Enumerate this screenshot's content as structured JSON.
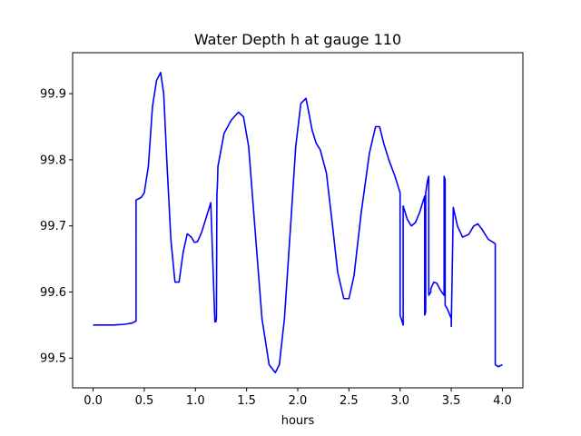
{
  "chart_data": {
    "type": "line",
    "title": "Water Depth h at gauge 110",
    "xlabel": "hours",
    "ylabel": "",
    "xlim": [
      -0.2,
      4.2
    ],
    "ylim": [
      99.455,
      99.962
    ],
    "xticks": [
      0.0,
      0.5,
      1.0,
      1.5,
      2.0,
      2.5,
      3.0,
      3.5,
      4.0
    ],
    "xtick_labels": [
      "0.0",
      "0.5",
      "1.0",
      "1.5",
      "2.0",
      "2.5",
      "3.0",
      "3.5",
      "4.0"
    ],
    "yticks": [
      99.5,
      99.6,
      99.7,
      99.8,
      99.9
    ],
    "ytick_labels": [
      "99.5",
      "99.6",
      "99.7",
      "99.8",
      "99.9"
    ],
    "grid": false,
    "legend": "none",
    "series": [
      {
        "color": "#0000ff",
        "x": [
          0.0,
          0.1,
          0.2,
          0.3,
          0.38,
          0.42,
          0.42,
          0.47,
          0.5,
          0.54,
          0.58,
          0.62,
          0.66,
          0.69,
          0.72,
          0.76,
          0.8,
          0.84,
          0.88,
          0.92,
          0.96,
          0.99,
          1.02,
          1.06,
          1.1,
          1.15,
          1.19,
          1.2,
          1.205,
          1.21,
          1.215,
          1.22,
          1.28,
          1.35,
          1.42,
          1.47,
          1.52,
          1.58,
          1.65,
          1.72,
          1.78,
          1.82,
          1.87,
          1.93,
          1.98,
          2.03,
          2.08,
          2.11,
          2.14,
          2.18,
          2.22,
          2.28,
          2.34,
          2.39,
          2.45,
          2.5,
          2.55,
          2.62,
          2.7,
          2.76,
          2.8,
          2.84,
          2.89,
          2.95,
          3.0,
          3.0,
          3.03,
          3.03,
          3.07,
          3.11,
          3.15,
          3.19,
          3.23,
          3.24,
          3.24,
          3.25,
          3.25,
          3.27,
          3.28,
          3.28,
          3.3,
          3.3,
          3.33,
          3.36,
          3.39,
          3.42,
          3.43,
          3.43,
          3.44,
          3.44,
          3.46,
          3.5,
          3.5,
          3.52,
          3.56,
          3.61,
          3.67,
          3.72,
          3.76,
          3.8,
          3.86,
          3.93,
          3.93,
          3.96,
          4.0
        ],
        "y": [
          99.55,
          99.55,
          99.55,
          99.551,
          99.553,
          99.556,
          99.739,
          99.743,
          99.75,
          99.79,
          99.88,
          99.92,
          99.932,
          99.9,
          99.8,
          99.68,
          99.615,
          99.615,
          99.66,
          99.688,
          99.683,
          99.675,
          99.676,
          99.69,
          99.71,
          99.735,
          99.555,
          99.555,
          99.56,
          99.748,
          99.762,
          99.79,
          99.84,
          99.86,
          99.872,
          99.865,
          99.82,
          99.7,
          99.56,
          99.49,
          99.478,
          99.49,
          99.56,
          99.7,
          99.82,
          99.885,
          99.893,
          99.87,
          99.845,
          99.825,
          99.815,
          99.78,
          99.7,
          99.63,
          99.59,
          99.59,
          99.625,
          99.72,
          99.81,
          99.85,
          99.85,
          99.825,
          99.8,
          99.775,
          99.75,
          99.565,
          99.55,
          99.73,
          99.71,
          99.7,
          99.705,
          99.72,
          99.74,
          99.745,
          99.565,
          99.57,
          99.75,
          99.77,
          99.775,
          99.595,
          99.6,
          99.605,
          99.615,
          99.613,
          99.604,
          99.597,
          99.595,
          99.775,
          99.77,
          99.58,
          99.575,
          99.56,
          99.548,
          99.728,
          99.7,
          99.683,
          99.687,
          99.7,
          99.703,
          99.695,
          99.68,
          99.673,
          99.49,
          99.487,
          99.49
        ]
      }
    ]
  }
}
